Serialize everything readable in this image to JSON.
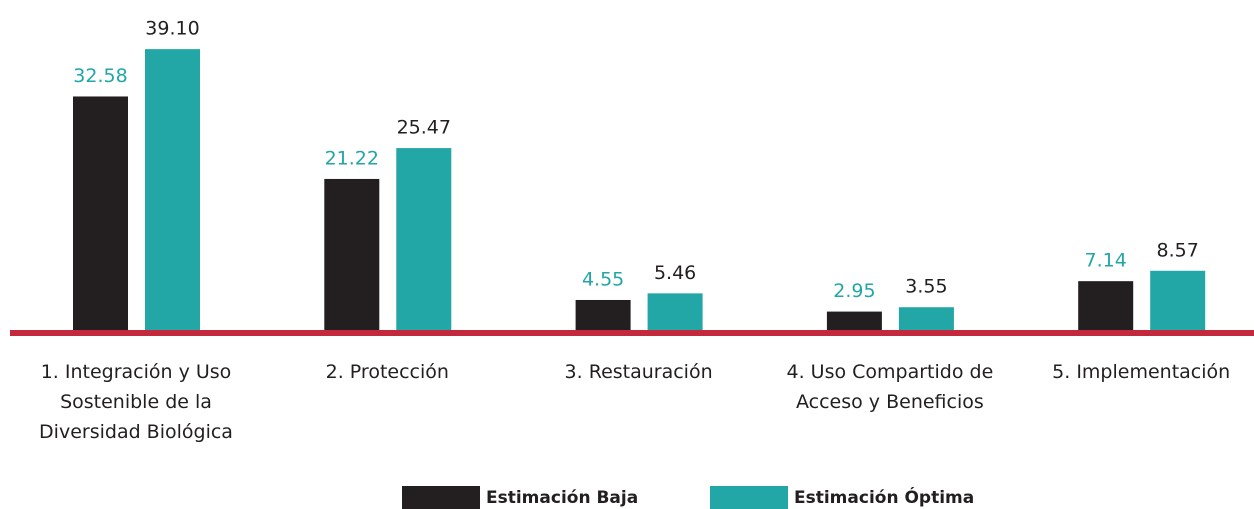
{
  "chart_data": {
    "type": "bar",
    "categories": [
      "1. Integración y Uso Sostenible de la Diversidad Biológica",
      "2. Protección",
      "3. Restauración",
      "4. Uso Compartido de Acceso y Beneficios",
      "5. Implementación"
    ],
    "series": [
      {
        "name": "Estimación Baja",
        "color": "#231f20",
        "label_color": "#22a6a6",
        "values": [
          32.58,
          21.22,
          4.55,
          2.95,
          7.14
        ],
        "value_labels": [
          "32.58",
          "21.22",
          "4.55",
          "2.95",
          "7.14"
        ]
      },
      {
        "name": "Estimación Óptima",
        "color": "#22a6a6",
        "label_color": "#231f20",
        "values": [
          39.1,
          25.47,
          5.46,
          3.55,
          8.57
        ],
        "value_labels": [
          "39.10",
          "25.47",
          "5.46",
          "3.55",
          "8.57"
        ]
      }
    ],
    "baseline_color": "#c4283c"
  }
}
